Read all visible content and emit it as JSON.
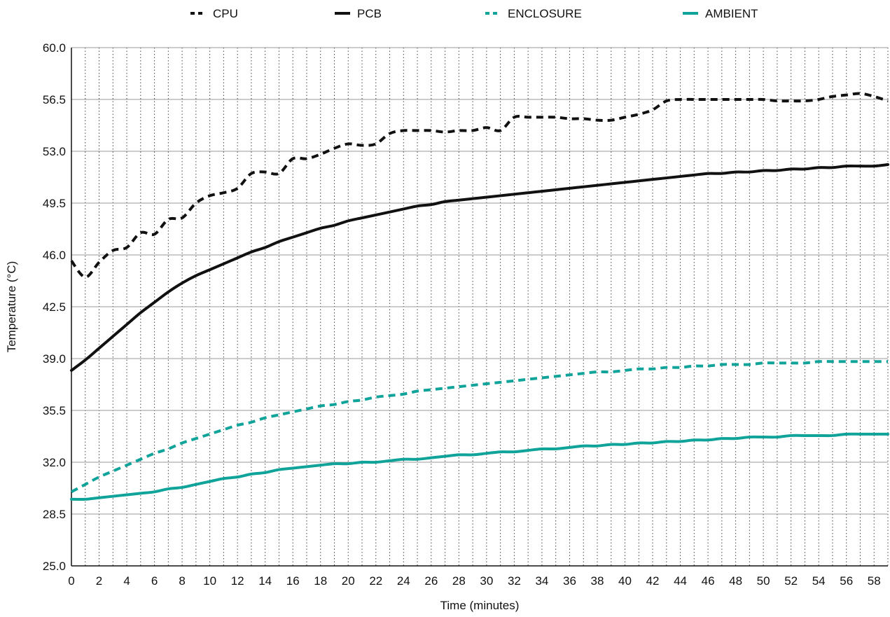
{
  "chart_data": {
    "type": "line",
    "xlabel": "Time (minutes)",
    "ylabel": "Temperature (°C)",
    "xlim": [
      0,
      59
    ],
    "ylim": [
      25.0,
      60.0
    ],
    "x_tick_labels": [
      "0",
      "2",
      "4",
      "6",
      "8",
      "10",
      "12",
      "14",
      "16",
      "18",
      "20",
      "22",
      "24",
      "26",
      "28",
      "30",
      "32",
      "34",
      "36",
      "38",
      "40",
      "42",
      "44",
      "46",
      "48",
      "50",
      "52",
      "54",
      "56",
      "58"
    ],
    "y_tick_labels": [
      "25.0",
      "28.5",
      "32.0",
      "35.5",
      "39.0",
      "42.5",
      "46.0",
      "49.5",
      "53.0",
      "56.5",
      "60.0"
    ],
    "grid": {
      "horizontal": true,
      "vertical_minor_dotted": true
    },
    "legend_position": "top-center",
    "x": [
      0,
      1,
      2,
      3,
      4,
      5,
      6,
      7,
      8,
      9,
      10,
      11,
      12,
      13,
      14,
      15,
      16,
      17,
      18,
      19,
      20,
      21,
      22,
      23,
      24,
      25,
      26,
      27,
      28,
      29,
      30,
      31,
      32,
      33,
      34,
      35,
      36,
      37,
      38,
      39,
      40,
      41,
      42,
      43,
      44,
      45,
      46,
      47,
      48,
      49,
      50,
      51,
      52,
      53,
      54,
      55,
      56,
      57,
      58,
      59
    ],
    "series": [
      {
        "name": "CPU",
        "color": "#111111",
        "style": "dashed",
        "values": [
          45.6,
          44.5,
          45.5,
          46.3,
          46.5,
          47.5,
          47.4,
          48.4,
          48.5,
          49.5,
          50.0,
          50.2,
          50.5,
          51.5,
          51.6,
          51.5,
          52.5,
          52.5,
          52.8,
          53.2,
          53.5,
          53.4,
          53.5,
          54.2,
          54.4,
          54.4,
          54.4,
          54.3,
          54.4,
          54.4,
          54.6,
          54.4,
          55.3,
          55.3,
          55.3,
          55.3,
          55.2,
          55.2,
          55.1,
          55.1,
          55.3,
          55.5,
          55.8,
          56.4,
          56.5,
          56.5,
          56.5,
          56.5,
          56.5,
          56.5,
          56.5,
          56.4,
          56.4,
          56.4,
          56.5,
          56.7,
          56.8,
          56.9,
          56.7,
          56.4
        ]
      },
      {
        "name": "PCB",
        "color": "#111111",
        "style": "solid",
        "values": [
          38.2,
          38.9,
          39.7,
          40.5,
          41.3,
          42.1,
          42.8,
          43.5,
          44.1,
          44.6,
          45.0,
          45.4,
          45.8,
          46.2,
          46.5,
          46.9,
          47.2,
          47.5,
          47.8,
          48.0,
          48.3,
          48.5,
          48.7,
          48.9,
          49.1,
          49.3,
          49.4,
          49.6,
          49.7,
          49.8,
          49.9,
          50.0,
          50.1,
          50.2,
          50.3,
          50.4,
          50.5,
          50.6,
          50.7,
          50.8,
          50.9,
          51.0,
          51.1,
          51.2,
          51.3,
          51.4,
          51.5,
          51.5,
          51.6,
          51.6,
          51.7,
          51.7,
          51.8,
          51.8,
          51.9,
          51.9,
          52.0,
          52.0,
          52.0,
          52.1
        ]
      },
      {
        "name": "ENCLOSURE",
        "color": "#0fa39a",
        "style": "dashed",
        "values": [
          30.0,
          30.5,
          31.0,
          31.4,
          31.8,
          32.2,
          32.6,
          32.9,
          33.3,
          33.6,
          33.9,
          34.2,
          34.5,
          34.7,
          35.0,
          35.2,
          35.4,
          35.6,
          35.8,
          35.9,
          36.1,
          36.2,
          36.4,
          36.5,
          36.6,
          36.8,
          36.9,
          37.0,
          37.1,
          37.2,
          37.3,
          37.4,
          37.5,
          37.6,
          37.7,
          37.8,
          37.9,
          38.0,
          38.1,
          38.1,
          38.2,
          38.3,
          38.3,
          38.4,
          38.4,
          38.5,
          38.5,
          38.6,
          38.6,
          38.6,
          38.7,
          38.7,
          38.7,
          38.7,
          38.8,
          38.8,
          38.8,
          38.8,
          38.8,
          38.8
        ]
      },
      {
        "name": "AMBIENT",
        "color": "#0fa39a",
        "style": "solid",
        "values": [
          29.5,
          29.5,
          29.6,
          29.7,
          29.8,
          29.9,
          30.0,
          30.2,
          30.3,
          30.5,
          30.7,
          30.9,
          31.0,
          31.2,
          31.3,
          31.5,
          31.6,
          31.7,
          31.8,
          31.9,
          31.9,
          32.0,
          32.0,
          32.1,
          32.2,
          32.2,
          32.3,
          32.4,
          32.5,
          32.5,
          32.6,
          32.7,
          32.7,
          32.8,
          32.9,
          32.9,
          33.0,
          33.1,
          33.1,
          33.2,
          33.2,
          33.3,
          33.3,
          33.4,
          33.4,
          33.5,
          33.5,
          33.6,
          33.6,
          33.7,
          33.7,
          33.7,
          33.8,
          33.8,
          33.8,
          33.8,
          33.9,
          33.9,
          33.9,
          33.9
        ]
      }
    ]
  }
}
